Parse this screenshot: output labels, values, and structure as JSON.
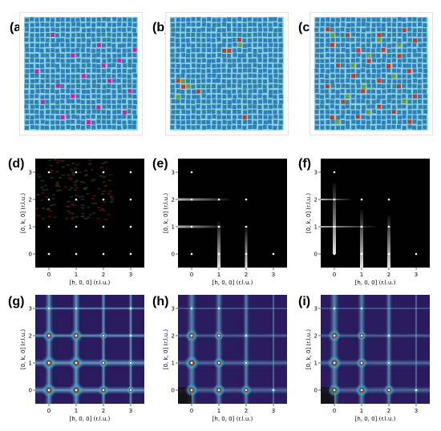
{
  "panels": {
    "a": {
      "label": "(a)",
      "type": "lattice"
    },
    "b": {
      "label": "(b)",
      "type": "lattice"
    },
    "c": {
      "label": "(c)",
      "type": "lattice"
    },
    "d": {
      "label": "(d)",
      "type": "diffraction-gray"
    },
    "e": {
      "label": "(e)",
      "type": "diffraction-gray"
    },
    "f": {
      "label": "(f)",
      "type": "diffraction-gray"
    },
    "g": {
      "label": "(g)",
      "type": "diffraction-color"
    },
    "h": {
      "label": "(h)",
      "type": "diffraction-color"
    },
    "i": {
      "label": "(i)",
      "type": "diffraction-color"
    }
  },
  "axes": {
    "xlabel": "[h, 0, 0] (r.l.u.)",
    "ylabel": "[0, k, 0] (r.l.u.)",
    "xticks": [
      "0",
      "1",
      "2",
      "3"
    ],
    "yticks": [
      "0",
      "1",
      "2",
      "3"
    ]
  },
  "colors": {
    "tile_blue": "#2e7fb8",
    "tile_magenta": "#d01f9e",
    "tile_red": "#c0392b",
    "tile_green": "#6e9a35",
    "gap_cyan": "#8fd3e0",
    "plot_bg_gray": "#000000",
    "plot_bg_color": "#2a1a5e"
  },
  "chart_data": [
    {
      "type": "heatmap",
      "panel": "d",
      "xlim": [
        -0.5,
        3.5
      ],
      "ylim": [
        -0.5,
        3.5
      ],
      "bragg_peaks": [
        [
          0,
          0
        ],
        [
          1,
          0
        ],
        [
          2,
          0
        ],
        [
          3,
          0
        ],
        [
          0,
          1
        ],
        [
          1,
          1
        ],
        [
          2,
          1
        ],
        [
          3,
          1
        ],
        [
          0,
          2
        ],
        [
          1,
          2
        ],
        [
          2,
          2
        ],
        [
          3,
          2
        ],
        [
          0,
          3
        ],
        [
          1,
          3
        ],
        [
          2,
          3
        ],
        [
          3,
          3
        ]
      ]
    },
    {
      "type": "heatmap",
      "panel": "e",
      "xlim": [
        -0.5,
        3.5
      ],
      "ylim": [
        -0.5,
        3.5
      ],
      "bragg_peaks": [
        [
          0,
          0
        ],
        [
          1,
          0
        ],
        [
          2,
          0
        ],
        [
          3,
          0
        ],
        [
          0,
          1
        ],
        [
          1,
          1
        ],
        [
          2,
          1
        ],
        [
          0,
          2
        ],
        [
          1,
          2
        ],
        [
          2,
          2
        ],
        [
          0,
          3
        ]
      ]
    },
    {
      "type": "heatmap",
      "panel": "f",
      "xlim": [
        -0.5,
        3.5
      ],
      "ylim": [
        -0.5,
        3.5
      ],
      "bragg_peaks": [
        [
          0,
          0
        ],
        [
          1,
          0
        ],
        [
          2,
          0
        ],
        [
          3,
          0
        ],
        [
          0,
          1
        ],
        [
          1,
          1
        ],
        [
          2,
          1
        ],
        [
          0,
          2
        ],
        [
          1,
          2
        ],
        [
          2,
          2
        ],
        [
          0,
          3
        ]
      ]
    },
    {
      "type": "heatmap",
      "panel": "g",
      "xlim": [
        -0.5,
        3.5
      ],
      "ylim": [
        -0.5,
        3.5
      ]
    },
    {
      "type": "heatmap",
      "panel": "h",
      "xlim": [
        -0.5,
        3.5
      ],
      "ylim": [
        -0.5,
        3.5
      ]
    },
    {
      "type": "heatmap",
      "panel": "i",
      "xlim": [
        -0.5,
        3.5
      ],
      "ylim": [
        -0.5,
        3.5
      ]
    }
  ]
}
